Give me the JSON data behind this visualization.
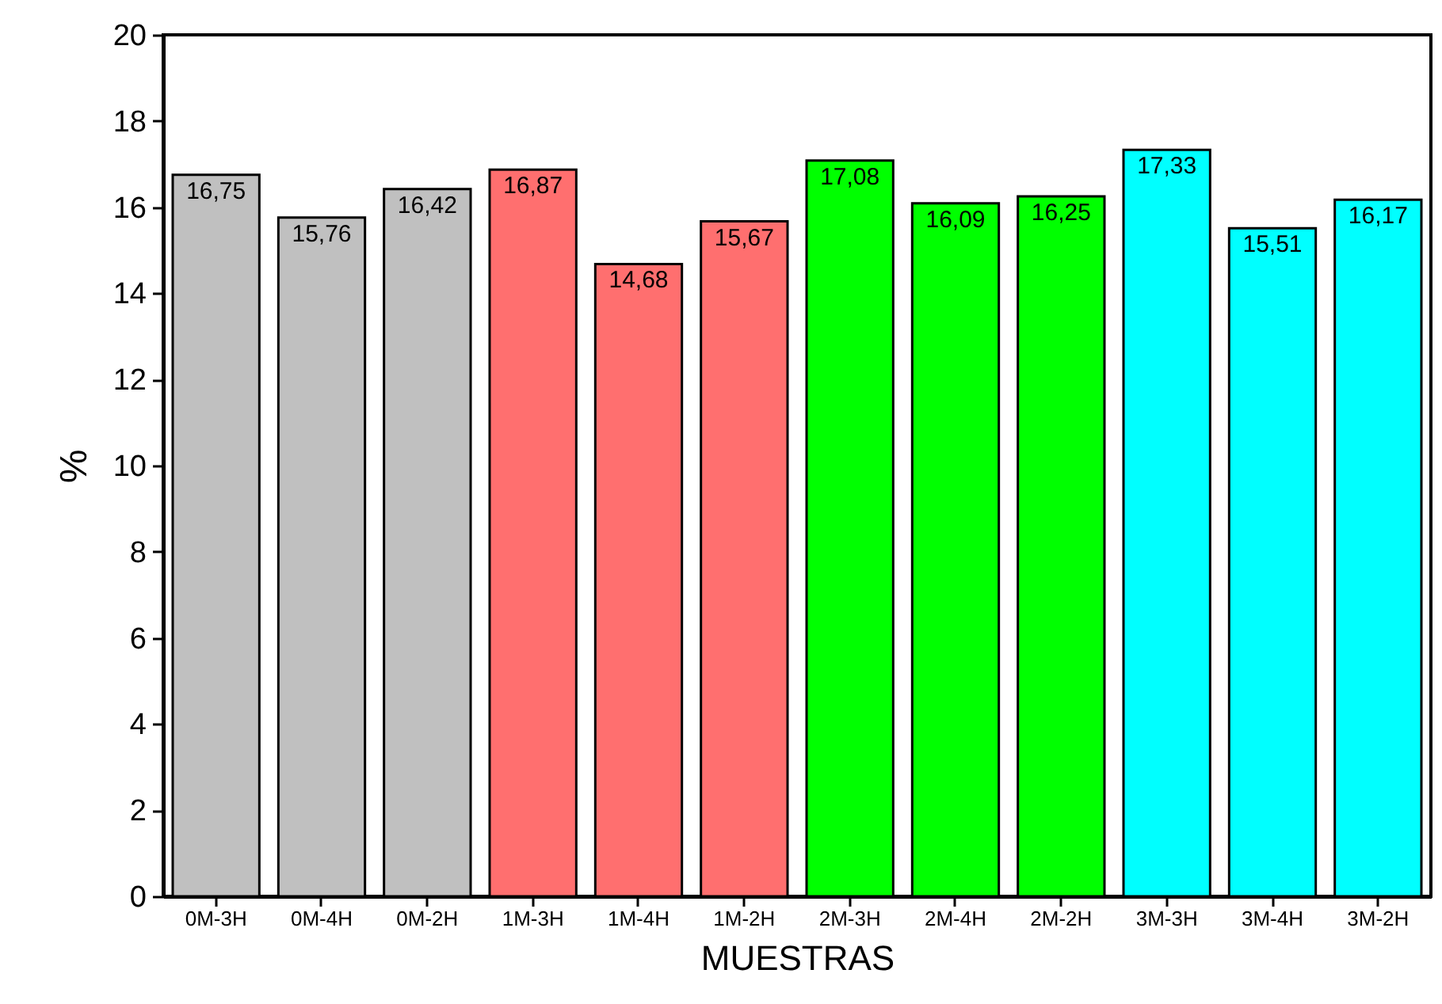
{
  "chart_data": {
    "type": "bar",
    "xlabel": "MUESTRAS",
    "ylabel": "%",
    "categories": [
      "0M-3H",
      "0M-4H",
      "0M-2H",
      "1M-3H",
      "1M-4H",
      "1M-2H",
      "2M-3H",
      "2M-4H",
      "2M-2H",
      "3M-3H",
      "3M-4H",
      "3M-2H"
    ],
    "values": [
      16.75,
      15.76,
      16.42,
      16.87,
      14.68,
      15.67,
      17.08,
      16.09,
      16.25,
      17.33,
      15.51,
      16.17
    ],
    "value_labels": [
      "16,75",
      "15,76",
      "16,42",
      "16,87",
      "14,68",
      "15,67",
      "17,08",
      "16,09",
      "16,25",
      "17,33",
      "15,51",
      "16,17"
    ],
    "colors": [
      "#c0c0c0",
      "#c0c0c0",
      "#c0c0c0",
      "#ff6f6f",
      "#ff6f6f",
      "#ff6f6f",
      "#00ff00",
      "#00ff00",
      "#00ff00",
      "#00ffff",
      "#00ffff",
      "#00ffff"
    ],
    "ylim": [
      0,
      20
    ],
    "yticks": [
      0,
      2,
      4,
      6,
      8,
      10,
      12,
      14,
      16,
      18,
      20
    ],
    "grid": false
  }
}
